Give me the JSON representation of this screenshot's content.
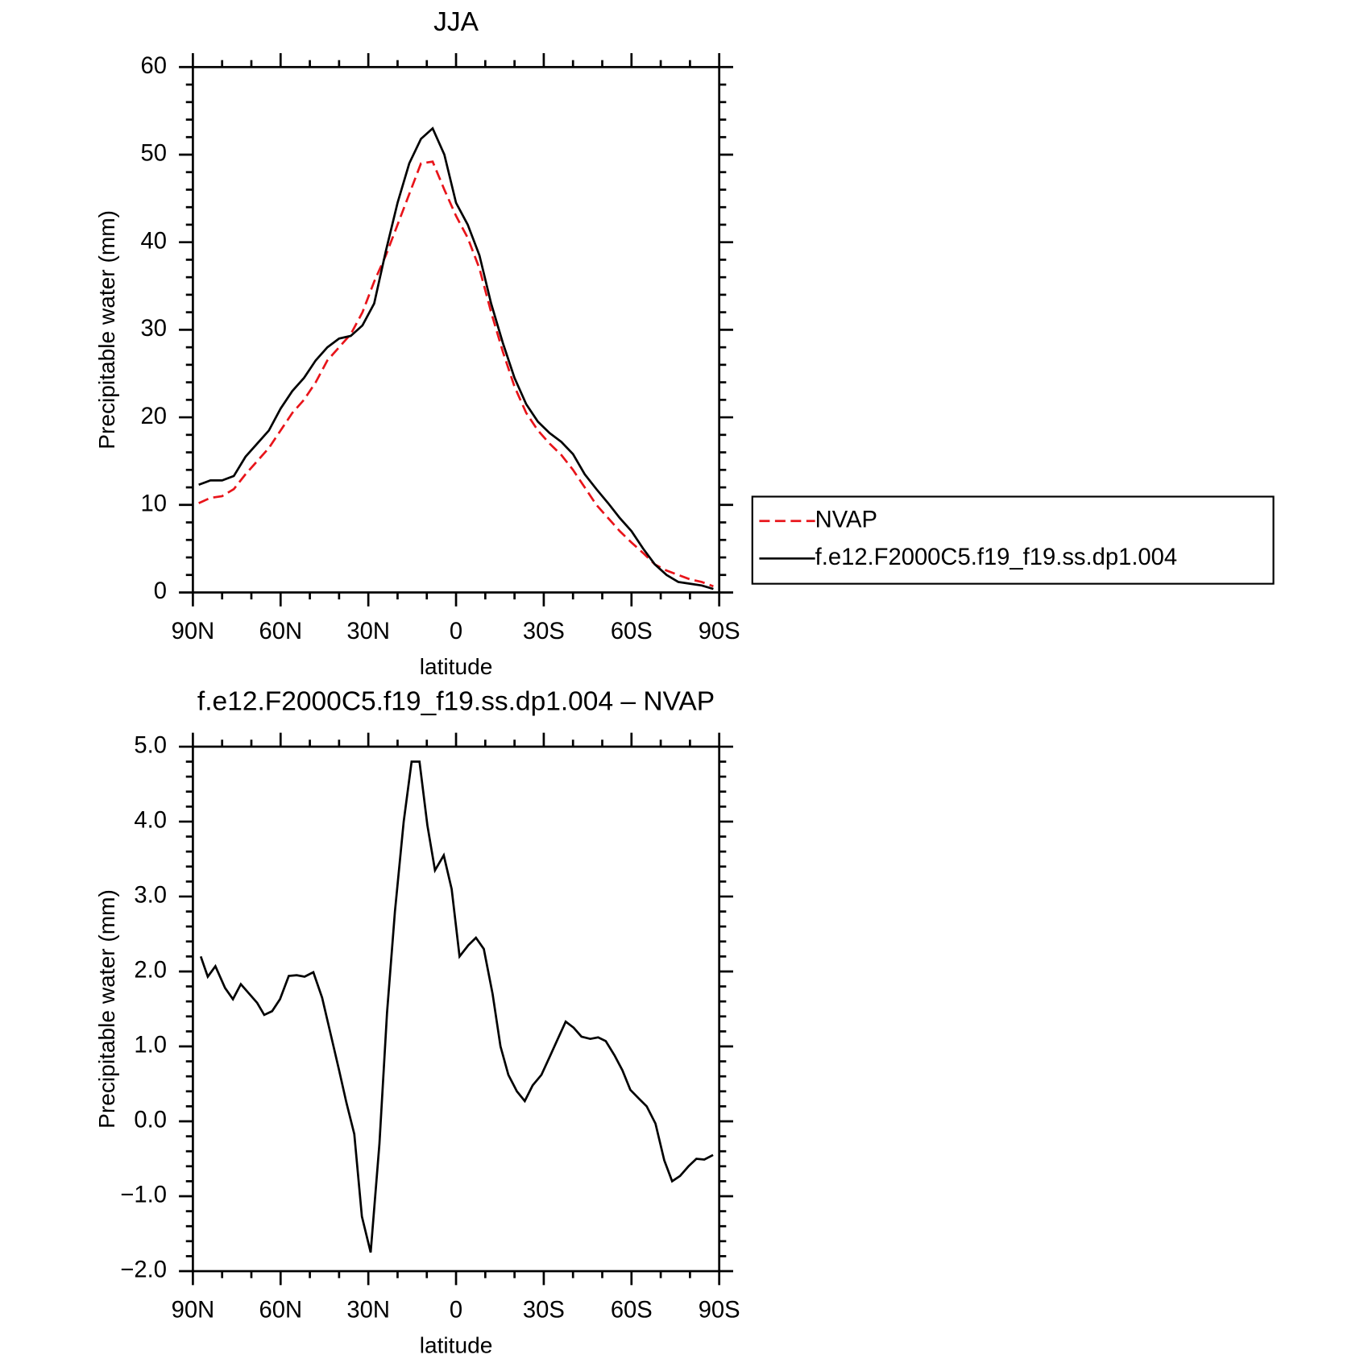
{
  "chart_data": [
    {
      "type": "line",
      "title": "JJA",
      "xlabel": "latitude",
      "ylabel": "Precipitable water (mm)",
      "xlim": [
        90,
        -90
      ],
      "ylim": [
        0,
        60
      ],
      "xticks": [
        {
          "value": 90,
          "label": "90N"
        },
        {
          "value": 60,
          "label": "60N"
        },
        {
          "value": 30,
          "label": "30N"
        },
        0,
        {
          "value": -30,
          "label": "30S"
        },
        {
          "value": -60,
          "label": "60S"
        },
        {
          "value": -90,
          "label": "90S"
        }
      ],
      "yticks": [
        0,
        10,
        20,
        30,
        40,
        50,
        60
      ],
      "x": [
        88,
        84,
        80,
        76,
        72,
        68,
        64,
        60,
        56,
        52,
        48,
        44,
        40,
        36,
        32,
        28,
        24,
        20,
        16,
        12,
        8,
        4,
        0,
        -4,
        -8,
        -12,
        -16,
        -20,
        -24,
        -28,
        -32,
        -36,
        -40,
        -44,
        -48,
        -52,
        -56,
        -60,
        -64,
        -68,
        -72,
        -76,
        -80,
        -84,
        -88
      ],
      "series": [
        {
          "name": "NVAP",
          "color": "#e8141a",
          "linestyle": "dashed",
          "values": [
            10.2,
            10.8,
            11,
            11.8,
            13.5,
            15,
            16.5,
            18.5,
            20.5,
            22,
            24,
            26.5,
            28,
            29.5,
            32,
            35.5,
            38.5,
            42,
            45.5,
            49,
            49.2,
            46,
            43,
            40.5,
            37,
            32,
            27.5,
            23.5,
            20.5,
            18.5,
            17,
            15.7,
            14,
            12,
            10,
            8.5,
            7,
            5.7,
            4.5,
            3.2,
            2.5,
            2,
            1.5,
            1.2,
            0.7
          ]
        },
        {
          "name": "f.e12.F2000C5.f19_f19.ss.dp1.004",
          "color": "#000000",
          "linestyle": "solid",
          "values": [
            12.3,
            12.8,
            12.8,
            13.3,
            15.5,
            17,
            18.5,
            21,
            23,
            24.5,
            26.5,
            28,
            29,
            29.3,
            30.5,
            33,
            39,
            44.5,
            49,
            51.8,
            53,
            50,
            44.5,
            42,
            38.5,
            33,
            28.5,
            24.5,
            21.5,
            19.5,
            18.2,
            17.2,
            15.8,
            13.5,
            11.8,
            10.2,
            8.5,
            7,
            5,
            3.2,
            2,
            1.2,
            1,
            0.8,
            0.4
          ]
        }
      ]
    },
    {
      "type": "line",
      "title": "f.e12.F2000C5.f19_f19.ss.dp1.004 – NVAP",
      "xlabel": "latitude",
      "ylabel": "Precipitable water (mm)",
      "xlim": [
        90,
        -90
      ],
      "ylim": [
        -2,
        5
      ],
      "xticks": [
        {
          "value": 90,
          "label": "90N"
        },
        {
          "value": 60,
          "label": "60N"
        },
        {
          "value": 30,
          "label": "30N"
        },
        0,
        {
          "value": -30,
          "label": "30S"
        },
        {
          "value": -60,
          "label": "60S"
        },
        {
          "value": -90,
          "label": "90S"
        }
      ],
      "yticks": [
        {
          "value": -2,
          "label": "−2.0"
        },
        {
          "value": -1,
          "label": "−1.0"
        },
        {
          "value": 0,
          "label": "0.0"
        },
        {
          "value": 1,
          "label": "1.0"
        },
        {
          "value": 2,
          "label": "2.0"
        },
        {
          "value": 3,
          "label": "3.0"
        },
        {
          "value": 4,
          "label": "4.0"
        },
        {
          "value": 5,
          "label": "5.0"
        }
      ],
      "x": [
        87.3,
        84.9,
        82.3,
        79,
        76.3,
        73.6,
        68,
        65.6,
        62.9,
        60.2,
        57.2,
        54.5,
        51.8,
        48.8,
        45.8,
        43.1,
        40.1,
        37.5,
        34.8,
        32.2,
        29.2,
        26.2,
        23.6,
        20.9,
        17.9,
        15.2,
        12.5,
        9.8,
        7.2,
        4.2,
        1.5,
        -1.2,
        -4.2,
        -6.8,
        -9.5,
        -12.5,
        -15.2,
        -17.9,
        -20.8,
        -23.5,
        -26.2,
        -29.2,
        -31.9,
        -34.8,
        -37.5,
        -40.2,
        -42.9,
        -45.9,
        -48.6,
        -51.2,
        -54.2,
        -56.9,
        -59.6,
        -62.6,
        -65.2,
        -68.2,
        -71.2,
        -73.9,
        -76.6,
        -79.5,
        -82.2,
        -84.9,
        -87.9
      ],
      "series": [
        {
          "color": "#000000",
          "linestyle": "solid",
          "values": [
            2.2,
            1.93,
            2.07,
            1.78,
            1.63,
            1.83,
            1.58,
            1.42,
            1.47,
            1.63,
            1.94,
            1.95,
            1.93,
            1.99,
            1.65,
            1.2,
            0.7,
            0.25,
            -0.17,
            -1.27,
            -1.75,
            -0.3,
            1.45,
            2.8,
            4.0,
            4.8,
            4.8,
            3.95,
            3.35,
            3.55,
            3.1,
            2.2,
            2.35,
            2.45,
            2.3,
            1.7,
            1.0,
            0.62,
            0.4,
            0.27,
            0.48,
            0.62,
            0.85,
            1.1,
            1.33,
            1.25,
            1.13,
            1.1,
            1.12,
            1.07,
            0.88,
            0.68,
            0.42,
            0.3,
            0.2,
            -0.03,
            -0.52,
            -0.8,
            -0.73,
            -0.6,
            -0.5,
            -0.51,
            -0.45
          ]
        }
      ]
    }
  ]
}
